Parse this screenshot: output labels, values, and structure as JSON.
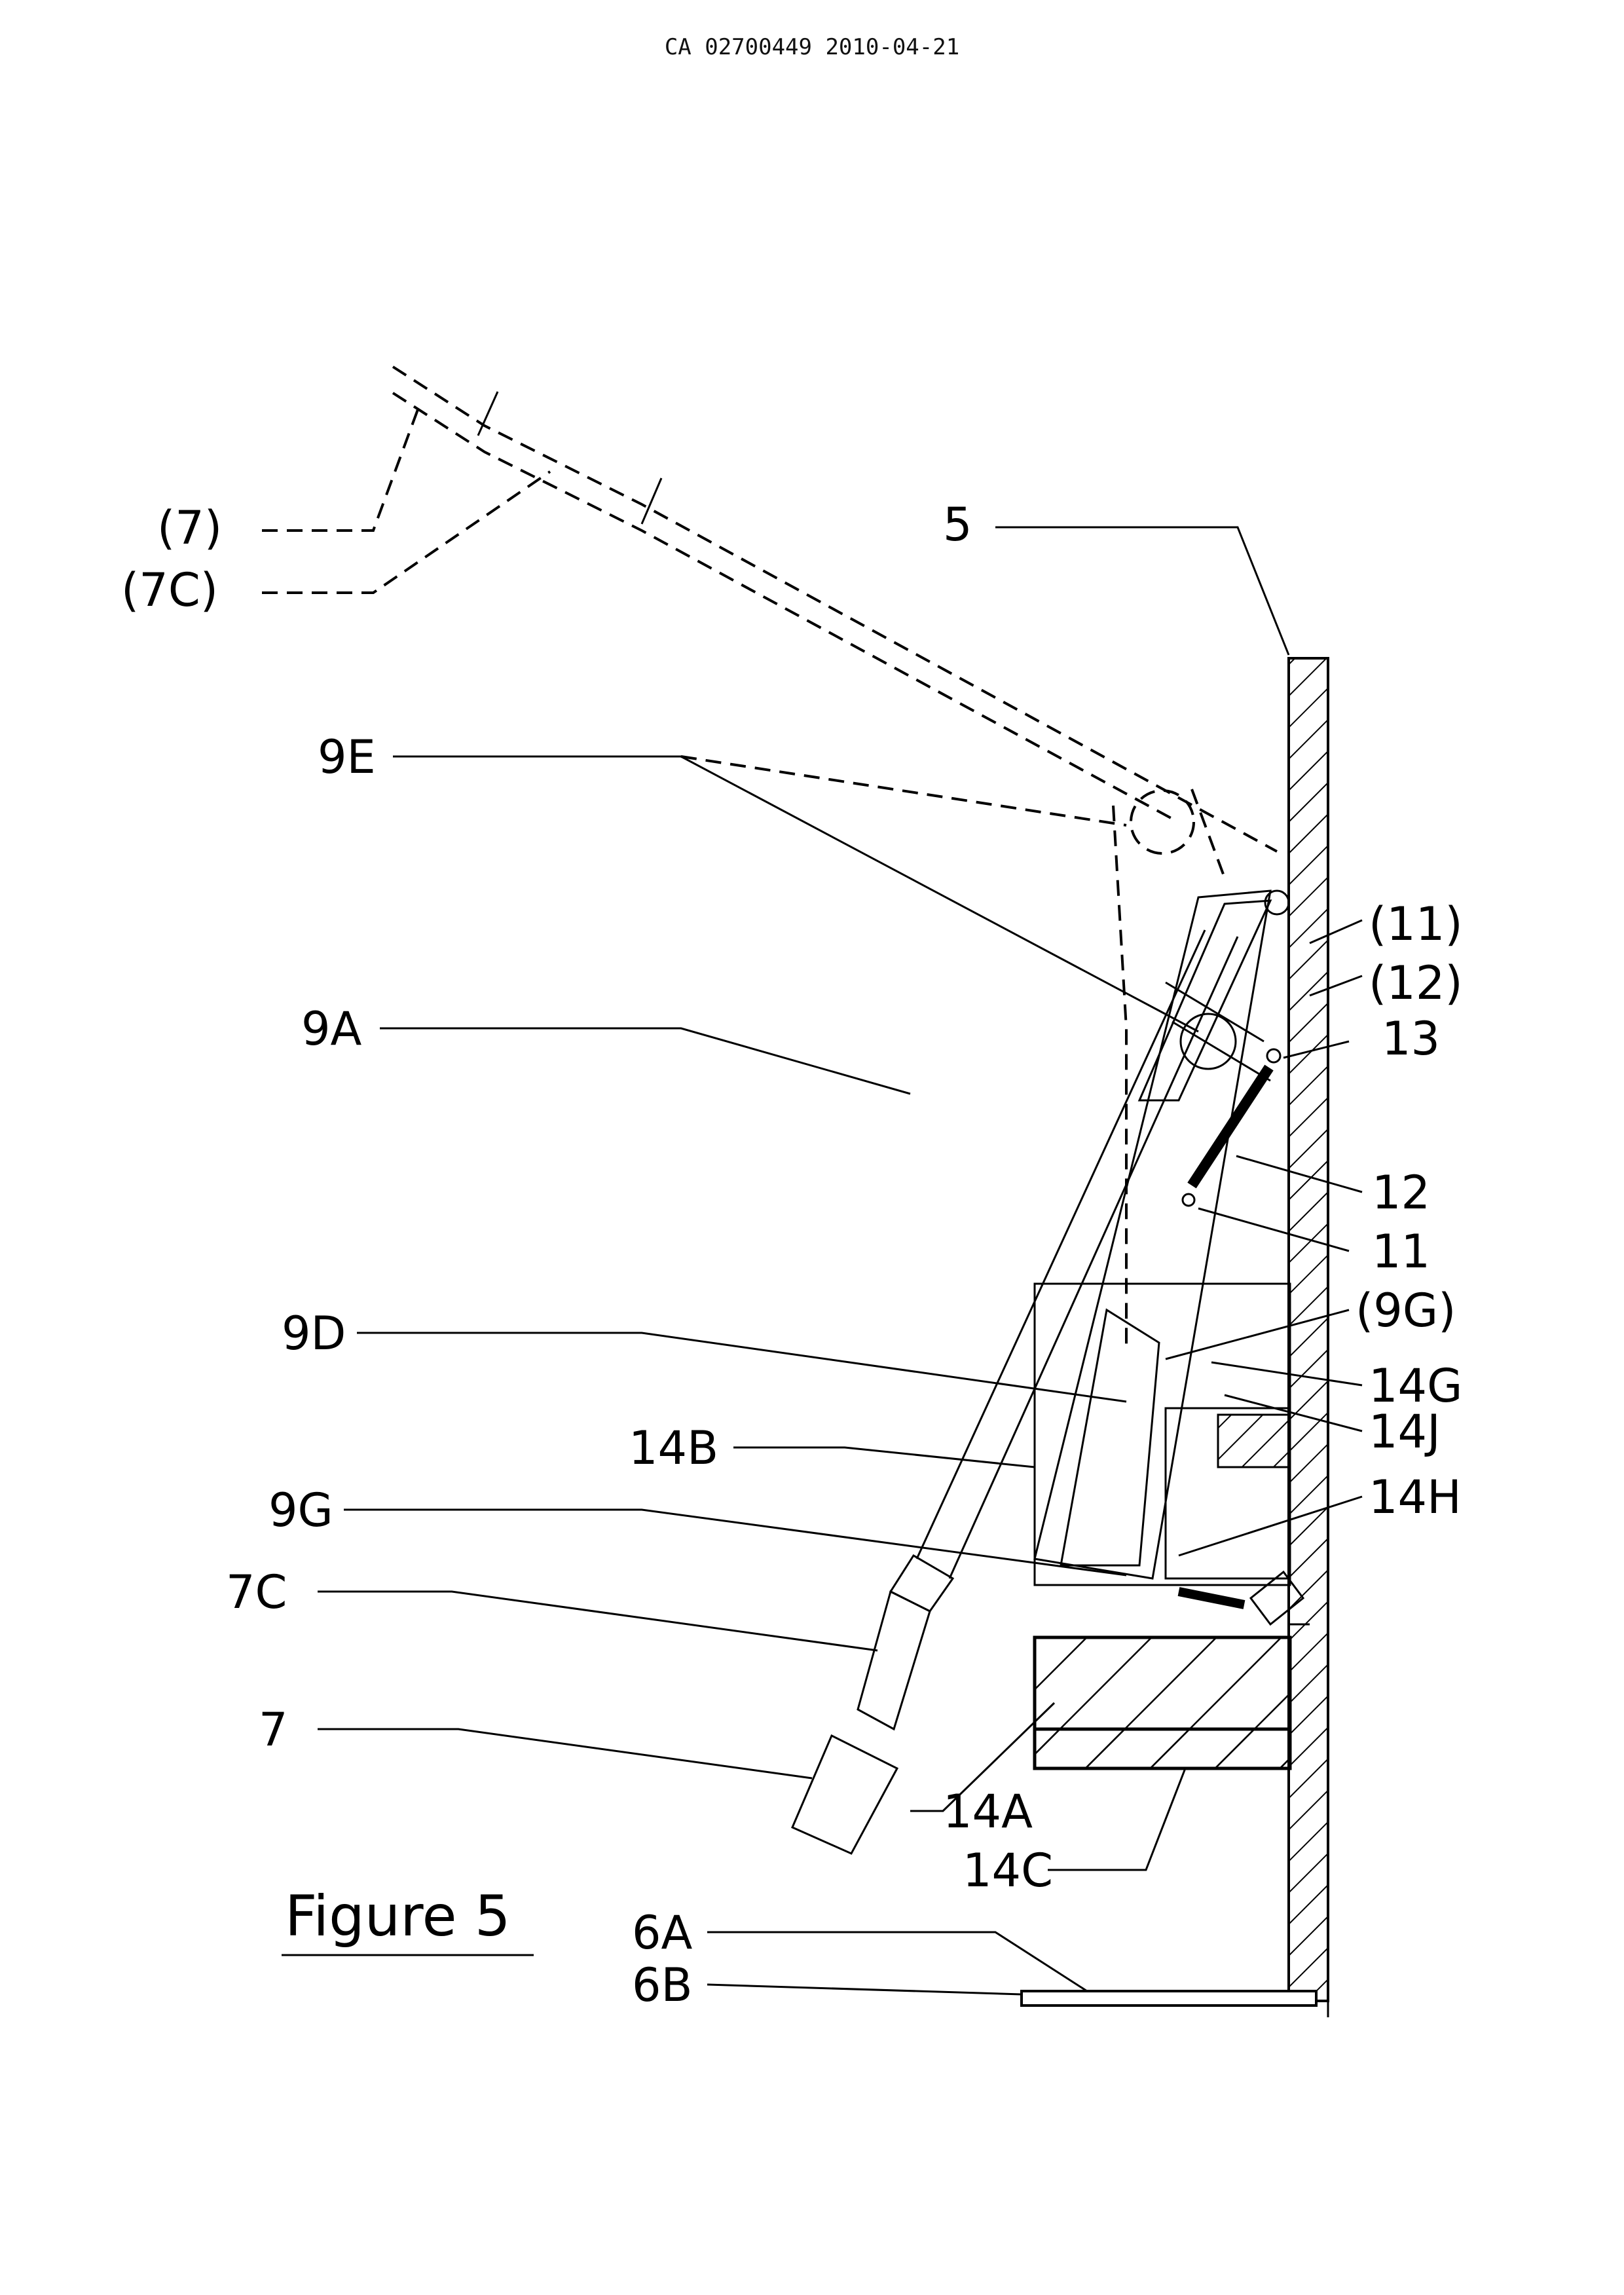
{
  "header": {
    "doc_id": "CA 02700449 2010-04-21"
  },
  "figure": {
    "caption": "Figure 5"
  },
  "labels": {
    "l_7p": "(7)",
    "l_7cp": "(7C)",
    "l_5": "5",
    "l_9e": "9E",
    "l_9a": "9A",
    "l_11p": "(11)",
    "l_12p": "(12)",
    "l_13": "13",
    "l_12": "12",
    "l_11": "11",
    "l_9gp": "(9G)",
    "l_9d": "9D",
    "l_14g": "14G",
    "l_14j": "14J",
    "l_14b": "14B",
    "l_14h": "14H",
    "l_9g": "9G",
    "l_7c": "7C",
    "l_7": "7",
    "l_14a": "14A",
    "l_14c": "14C",
    "l_6a": "6A",
    "l_6b": "6B"
  }
}
